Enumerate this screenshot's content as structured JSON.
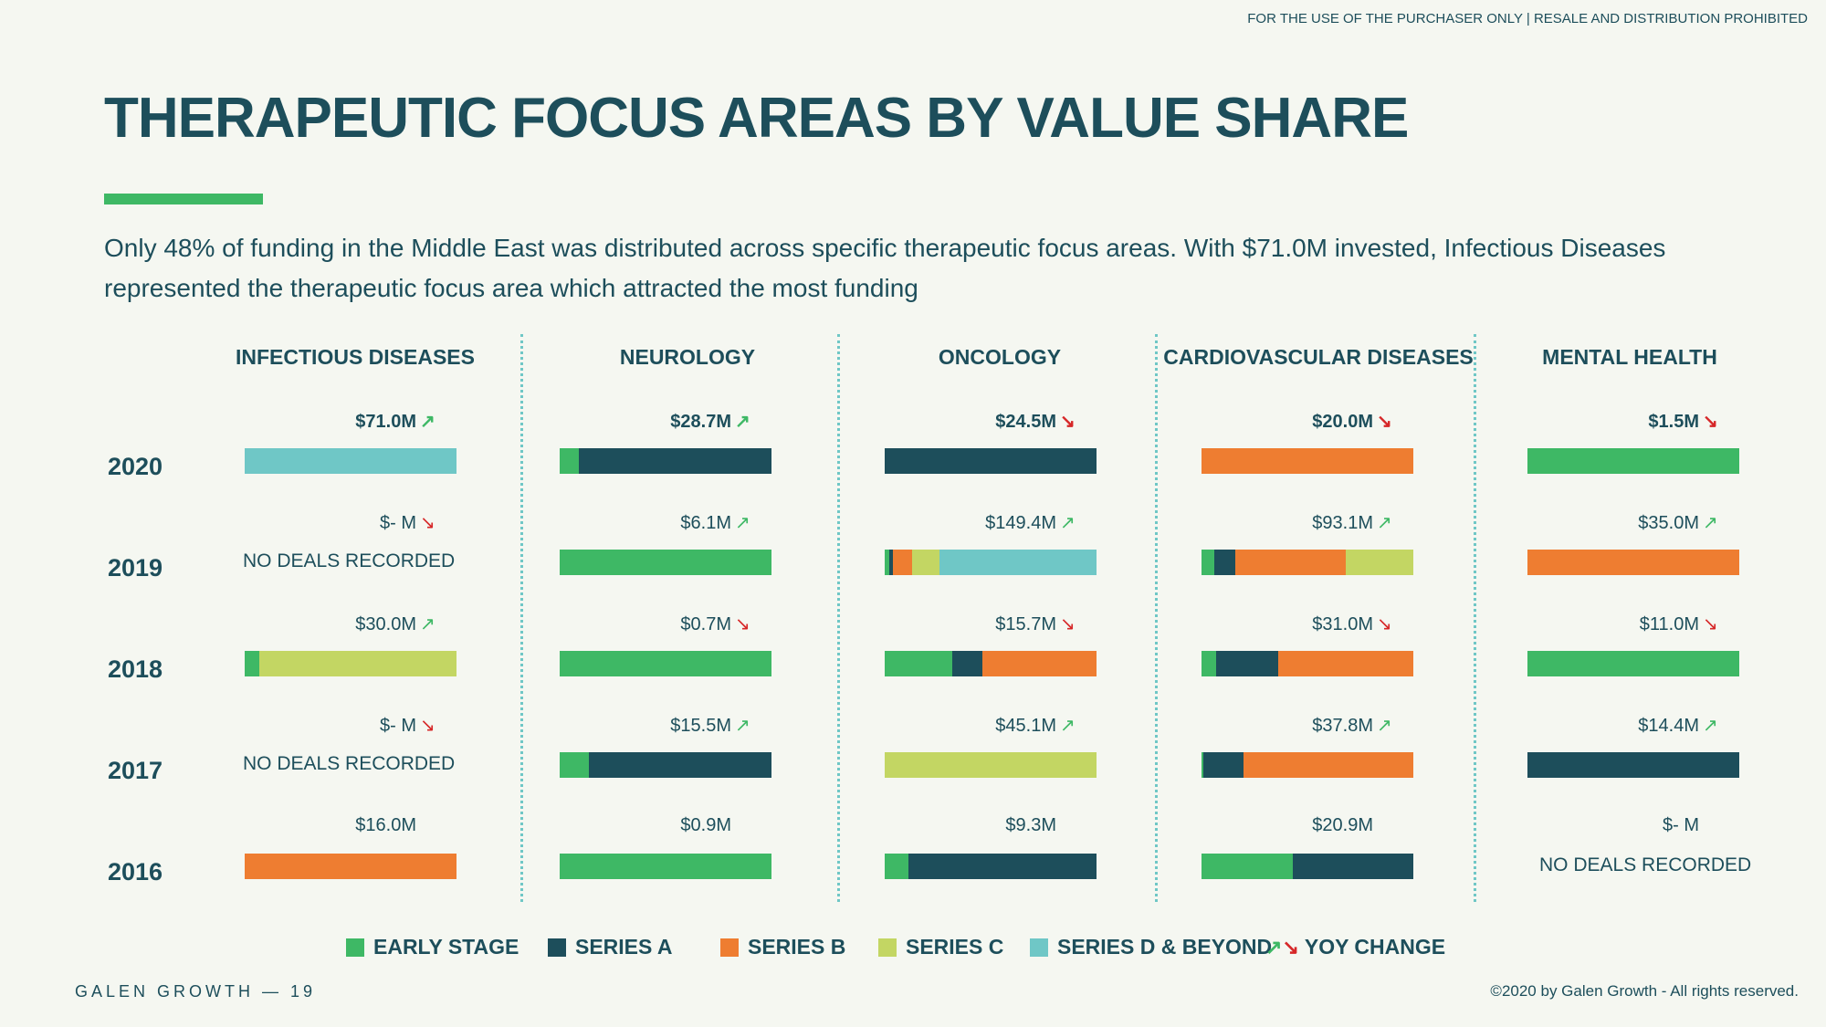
{
  "header": {
    "disclaimer": "FOR THE USE OF THE PURCHASER ONLY | RESALE AND DISTRIBUTION PROHIBITED",
    "title": "THERAPEUTIC FOCUS AREAS BY VALUE SHARE",
    "subtitle": "Only 48% of funding in the Middle East was distributed across specific therapeutic focus areas. With $71.0M invested, Infectious Diseases represented the therapeutic focus area which attracted the most funding"
  },
  "colors": {
    "early_stage": "#3eb865",
    "series_a": "#1d4e5b",
    "series_b": "#ee7d31",
    "series_c": "#c3d663",
    "series_d_beyond": "#6fc7c6",
    "up_arrow": "#3eb865",
    "down_arrow": "#d62728"
  },
  "chart_data": {
    "type": "bar",
    "subtype": "100% stacked horizontal bar (small multiples)",
    "stacks": [
      "Early Stage",
      "Series A",
      "Series B",
      "Series C",
      "Series D & Beyond"
    ],
    "years": [
      "2020",
      "2019",
      "2018",
      "2017",
      "2016"
    ],
    "no_deals_text": "NO DEALS RECORDED",
    "categories": [
      {
        "name": "INFECTIOUS DISEASES",
        "rows": [
          {
            "year": "2020",
            "total": "$71.0M",
            "change": "up",
            "shares": [
              0,
              0,
              0,
              0,
              1
            ]
          },
          {
            "year": "2019",
            "total": "$- M",
            "change": "down",
            "shares": null
          },
          {
            "year": "2018",
            "total": "$30.0M",
            "change": "up",
            "shares": [
              0.07,
              0,
              0,
              0.93,
              0
            ]
          },
          {
            "year": "2017",
            "total": "$- M",
            "change": "down",
            "shares": null
          },
          {
            "year": "2016",
            "total": "$16.0M",
            "change": null,
            "shares": [
              0,
              0,
              1,
              0,
              0
            ]
          }
        ]
      },
      {
        "name": "NEUROLOGY",
        "rows": [
          {
            "year": "2020",
            "total": "$28.7M",
            "change": "up",
            "shares": [
              0.09,
              0.91,
              0,
              0,
              0
            ]
          },
          {
            "year": "2019",
            "total": "$6.1M",
            "change": "up",
            "shares": [
              1,
              0,
              0,
              0,
              0
            ]
          },
          {
            "year": "2018",
            "total": "$0.7M",
            "change": "down",
            "shares": [
              1,
              0,
              0,
              0,
              0
            ]
          },
          {
            "year": "2017",
            "total": "$15.5M",
            "change": "up",
            "shares": [
              0.14,
              0.86,
              0,
              0,
              0
            ]
          },
          {
            "year": "2016",
            "total": "$0.9M",
            "change": null,
            "shares": [
              1,
              0,
              0,
              0,
              0
            ]
          }
        ]
      },
      {
        "name": "ONCOLOGY",
        "rows": [
          {
            "year": "2020",
            "total": "$24.5M",
            "change": "down",
            "shares": [
              0,
              1,
              0,
              0,
              0
            ]
          },
          {
            "year": "2019",
            "total": "$149.4M",
            "change": "up",
            "shares": [
              0.02,
              0.02,
              0.09,
              0.13,
              0.74
            ]
          },
          {
            "year": "2018",
            "total": "$15.7M",
            "change": "down",
            "shares": [
              0.32,
              0.14,
              0.54,
              0,
              0
            ]
          },
          {
            "year": "2017",
            "total": "$45.1M",
            "change": "up",
            "shares": [
              0,
              0,
              0,
              1,
              0
            ]
          },
          {
            "year": "2016",
            "total": "$9.3M",
            "change": null,
            "shares": [
              0.11,
              0.89,
              0,
              0,
              0
            ]
          }
        ]
      },
      {
        "name": "CARDIOVASCULAR DISEASES",
        "rows": [
          {
            "year": "2020",
            "total": "$20.0M",
            "change": "down",
            "shares": [
              0,
              0,
              1,
              0,
              0
            ]
          },
          {
            "year": "2019",
            "total": "$93.1M",
            "change": "up",
            "shares": [
              0.06,
              0.1,
              0.52,
              0.32,
              0
            ]
          },
          {
            "year": "2018",
            "total": "$31.0M",
            "change": "down",
            "shares": [
              0.07,
              0.29,
              0.64,
              0,
              0
            ]
          },
          {
            "year": "2017",
            "total": "$37.8M",
            "change": "up",
            "shares": [
              0.01,
              0.19,
              0.8,
              0,
              0
            ]
          },
          {
            "year": "2016",
            "total": "$20.9M",
            "change": null,
            "shares": [
              0.43,
              0.57,
              0,
              0,
              0
            ]
          }
        ]
      },
      {
        "name": "MENTAL HEALTH",
        "rows": [
          {
            "year": "2020",
            "total": "$1.5M",
            "change": "down",
            "shares": [
              1,
              0,
              0,
              0,
              0
            ]
          },
          {
            "year": "2019",
            "total": "$35.0M",
            "change": "up",
            "shares": [
              0,
              0,
              1,
              0,
              0
            ]
          },
          {
            "year": "2018",
            "total": "$11.0M",
            "change": "down",
            "shares": [
              1,
              0,
              0,
              0,
              0
            ]
          },
          {
            "year": "2017",
            "total": "$14.4M",
            "change": "up",
            "shares": [
              0,
              1,
              0,
              0,
              0
            ]
          },
          {
            "year": "2016",
            "total": "$- M",
            "change": null,
            "shares": null
          }
        ]
      }
    ]
  },
  "legend": {
    "early_stage": "EARLY STAGE",
    "series_a": "SERIES A",
    "series_b": "SERIES B",
    "series_c": "SERIES C",
    "series_d_beyond": "SERIES D & BEYOND",
    "yoy_change": "YOY CHANGE",
    "up_arrow_icon": "↗",
    "down_arrow_icon": "↘"
  },
  "footer": {
    "brand": "GALEN GROWTH",
    "page_separator": "—",
    "page_number": "19",
    "copyright": "©2020 by Galen Growth  - All rights reserved."
  }
}
